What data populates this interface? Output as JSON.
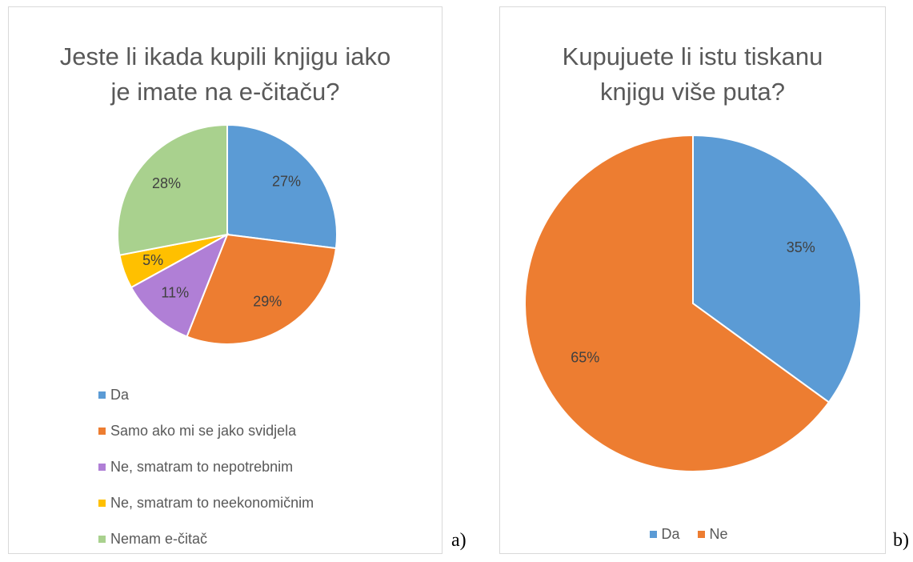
{
  "chart_data": [
    {
      "type": "pie",
      "title": "Jeste li ikada kupili knjigu iako je imate na e-čitaču?",
      "categories": [
        "Da",
        "Samo ako mi se jako svidjela",
        "Ne, smatram to nepotrebnim",
        "Ne, smatram to neekonomičnim",
        "Nemam e-čitač"
      ],
      "values": [
        27,
        29,
        11,
        5,
        28
      ],
      "value_labels": [
        "27%",
        "29%",
        "11%",
        "5%",
        "28%"
      ],
      "colors": [
        "#5b9bd5",
        "#ed7d31",
        "#b07fd6",
        "#ffc000",
        "#a9d18e"
      ],
      "legend": "bottom-left",
      "panel_label": "a)"
    },
    {
      "type": "pie",
      "title": "Kupujuete li istu tiskanu knjigu više puta?",
      "categories": [
        "Da",
        "Ne"
      ],
      "values": [
        35,
        65
      ],
      "value_labels": [
        "35%",
        "65%"
      ],
      "colors": [
        "#5b9bd5",
        "#ed7d31"
      ],
      "legend": "bottom",
      "panel_label": "b)"
    }
  ]
}
